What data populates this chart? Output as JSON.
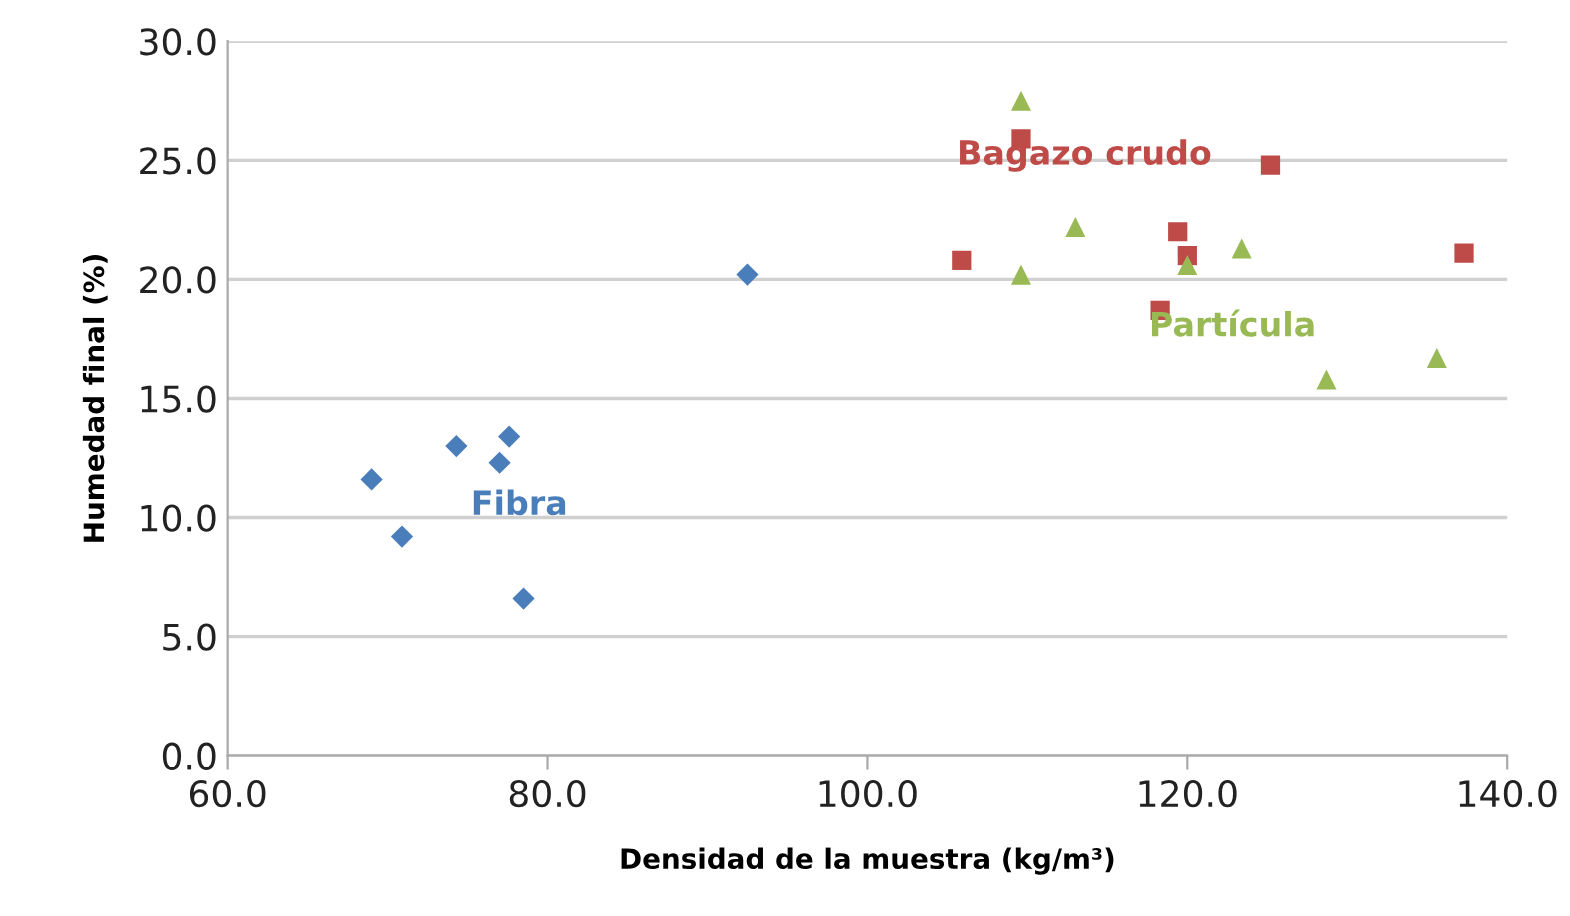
{
  "chart_data": {
    "type": "scatter",
    "xlabel": "Densidad de la muestra (kg/m³)",
    "ylabel": "Humedad final (%)",
    "xlim": [
      60,
      140
    ],
    "xticks": [
      {
        "value": 60,
        "label": "60.0"
      },
      {
        "value": 80,
        "label": "80.0"
      },
      {
        "value": 100,
        "label": "100.0"
      },
      {
        "value": 120,
        "label": "120.0"
      },
      {
        "value": 140,
        "label": "140.0"
      }
    ],
    "ylim": [
      0,
      30
    ],
    "yticks": [
      {
        "value": 0,
        "label": "0.0"
      },
      {
        "value": 5,
        "label": "5.0"
      },
      {
        "value": 10,
        "label": "10.0"
      },
      {
        "value": 15,
        "label": "15.0"
      },
      {
        "value": 20,
        "label": "20.0"
      },
      {
        "value": 25,
        "label": "25.0"
      },
      {
        "value": 30,
        "label": "30.0"
      }
    ],
    "grid": "y",
    "legend": false,
    "series": [
      {
        "name": "Fibra",
        "color": "#4a7ebb",
        "marker": "diamond",
        "x": [
          69.0,
          70.9,
          74.3,
          77.0,
          77.6,
          78.5,
          92.5
        ],
        "values": [
          11.6,
          9.2,
          13.0,
          12.3,
          13.4,
          6.6,
          20.2
        ]
      },
      {
        "name": "Bagazo crudo",
        "color": "#be4b48",
        "marker": "square",
        "x": [
          105.9,
          109.6,
          119.4,
          120.0,
          118.3,
          125.2,
          137.3
        ],
        "values": [
          20.8,
          25.9,
          22.0,
          21.0,
          18.7,
          24.8,
          21.1
        ]
      },
      {
        "name": "Partícula",
        "color": "#98b954",
        "marker": "triangle",
        "x": [
          109.6,
          113.0,
          109.6,
          120.0,
          123.4,
          128.7,
          135.6
        ],
        "values": [
          27.5,
          22.2,
          20.2,
          20.6,
          21.3,
          15.8,
          16.7
        ]
      }
    ]
  }
}
